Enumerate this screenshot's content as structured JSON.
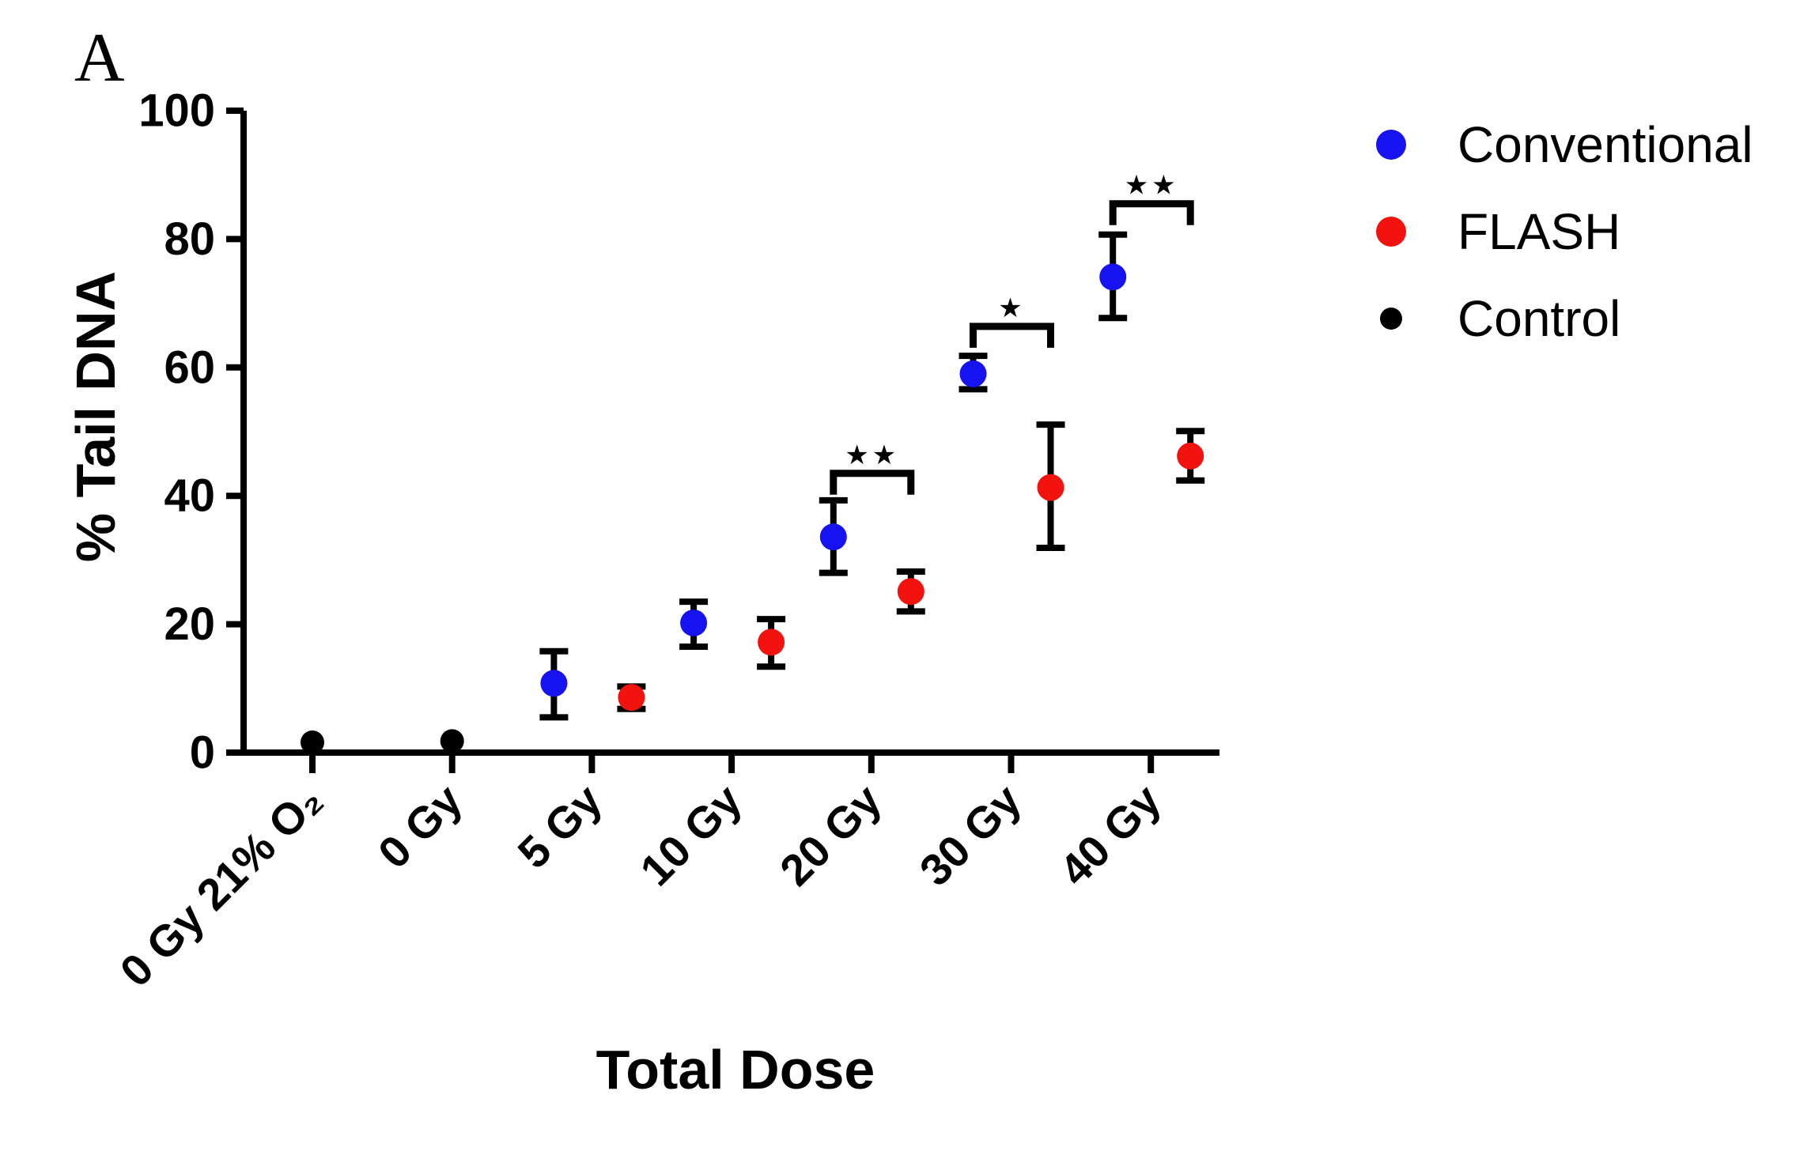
{
  "figure": {
    "panel_label": "A",
    "x_axis_title": "Total Dose",
    "y_axis_title": "% Tail DNA"
  },
  "legend": {
    "items": [
      {
        "label": "Conventional",
        "color": "#1612f0",
        "marker": "circle-icon"
      },
      {
        "label": "FLASH",
        "color": "#f2120e",
        "marker": "circle-icon"
      },
      {
        "label": "Control",
        "color": "#000000",
        "marker": "circle-icon"
      }
    ]
  },
  "chart_data": {
    "type": "scatter",
    "title": "",
    "xlabel": "Total Dose",
    "ylabel": "% Tail DNA",
    "ylim": [
      0,
      100
    ],
    "yticks": [
      0,
      20,
      40,
      60,
      80,
      100
    ],
    "grid": false,
    "legend_position": "top-right",
    "categories": [
      "0 Gy 21% O₂",
      "0 Gy",
      "5 Gy",
      "10 Gy",
      "20 Gy",
      "30 Gy",
      "40 Gy"
    ],
    "series": [
      {
        "name": "Conventional",
        "color": "#1612f0",
        "marker": "circle",
        "points": [
          {
            "category": "5 Gy",
            "y": 10.8,
            "err_lo": 5.5,
            "err_hi": 15.8
          },
          {
            "category": "10 Gy",
            "y": 20.2,
            "err_lo": 16.5,
            "err_hi": 23.5
          },
          {
            "category": "20 Gy",
            "y": 33.6,
            "err_lo": 28.0,
            "err_hi": 39.3
          },
          {
            "category": "30 Gy",
            "y": 59.0,
            "err_lo": 56.6,
            "err_hi": 61.8
          },
          {
            "category": "40 Gy",
            "y": 74.1,
            "err_lo": 67.7,
            "err_hi": 80.7
          }
        ]
      },
      {
        "name": "FLASH",
        "color": "#f2120e",
        "marker": "circle",
        "points": [
          {
            "category": "5 Gy",
            "y": 8.6,
            "err_lo": 6.8,
            "err_hi": 10.3
          },
          {
            "category": "10 Gy",
            "y": 17.2,
            "err_lo": 13.4,
            "err_hi": 20.8
          },
          {
            "category": "20 Gy",
            "y": 25.1,
            "err_lo": 22.0,
            "err_hi": 28.2
          },
          {
            "category": "30 Gy",
            "y": 41.3,
            "err_lo": 31.9,
            "err_hi": 51.1
          },
          {
            "category": "40 Gy",
            "y": 46.2,
            "err_lo": 42.4,
            "err_hi": 50.1
          }
        ]
      },
      {
        "name": "Control",
        "color": "#000000",
        "marker": "circle",
        "points": [
          {
            "category": "0 Gy 21% O₂",
            "y": 1.6
          },
          {
            "category": "0 Gy",
            "y": 1.8
          }
        ]
      }
    ],
    "significance": [
      {
        "category": "20 Gy",
        "from": "Conventional",
        "to": "FLASH",
        "label": "**",
        "bar_y": 43.5
      },
      {
        "category": "30 Gy",
        "from": "Conventional",
        "to": "FLASH",
        "label": "*",
        "bar_y": 66.4
      },
      {
        "category": "40 Gy",
        "from": "Conventional",
        "to": "FLASH",
        "label": "**",
        "bar_y": 85.5
      }
    ]
  }
}
